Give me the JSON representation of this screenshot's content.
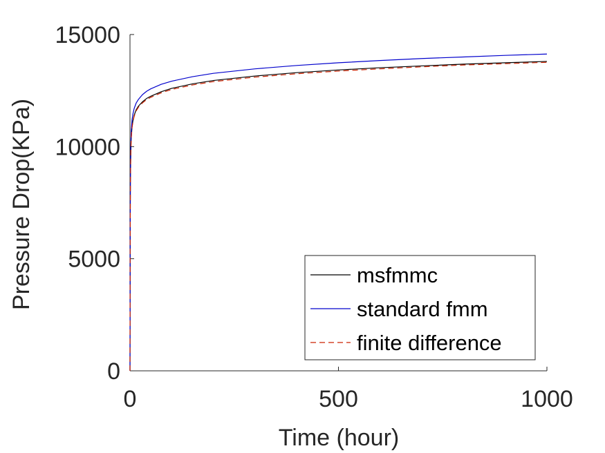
{
  "chart_data": {
    "type": "line",
    "title": "",
    "xlabel": "Time (hour)",
    "ylabel": "Pressure Drop(KPa)",
    "xlim": [
      0,
      1000
    ],
    "ylim": [
      0,
      15000
    ],
    "xticks": [
      0,
      500,
      1000
    ],
    "xtick_labels": [
      "0",
      "500",
      "1000"
    ],
    "yticks": [
      0,
      5000,
      10000,
      15000
    ],
    "ytick_labels": [
      "0",
      "5000",
      "10000",
      "15000"
    ],
    "grid": false,
    "legend_position": "bottom-right",
    "series": [
      {
        "name": "msfmmc",
        "color": "#000000",
        "style": "solid",
        "x": [
          0,
          0.5,
          1,
          2,
          3,
          5,
          7,
          10,
          15,
          20,
          30,
          40,
          50,
          75,
          100,
          150,
          200,
          300,
          400,
          500,
          600,
          700,
          800,
          900,
          1000
        ],
        "y": [
          0,
          6000,
          8500,
          9800,
          10400,
          10900,
          11150,
          11400,
          11650,
          11800,
          12000,
          12150,
          12250,
          12450,
          12600,
          12800,
          12950,
          13150,
          13300,
          13420,
          13520,
          13600,
          13680,
          13740,
          13800
        ]
      },
      {
        "name": "standard fmm",
        "color": "#0000cc",
        "style": "solid",
        "x": [
          0,
          0.5,
          1,
          2,
          3,
          5,
          7,
          10,
          15,
          20,
          30,
          40,
          50,
          75,
          100,
          150,
          200,
          300,
          400,
          500,
          600,
          700,
          800,
          900,
          1000
        ],
        "y": [
          0,
          6200,
          8800,
          10100,
          10700,
          11200,
          11450,
          11700,
          11950,
          12100,
          12320,
          12470,
          12580,
          12780,
          12920,
          13120,
          13270,
          13470,
          13620,
          13740,
          13840,
          13930,
          14000,
          14070,
          14130
        ]
      },
      {
        "name": "finite difference",
        "color": "#cc2200",
        "style": "dashed",
        "x": [
          0,
          0.5,
          1,
          2,
          3,
          5,
          7,
          10,
          15,
          20,
          30,
          40,
          50,
          75,
          100,
          150,
          200,
          300,
          400,
          500,
          600,
          700,
          800,
          900,
          1000
        ],
        "y": [
          0,
          5900,
          8400,
          9750,
          10350,
          10850,
          11100,
          11350,
          11600,
          11750,
          11950,
          12100,
          12200,
          12400,
          12550,
          12750,
          12900,
          13100,
          13250,
          13370,
          13470,
          13560,
          13640,
          13700,
          13760
        ]
      }
    ]
  }
}
